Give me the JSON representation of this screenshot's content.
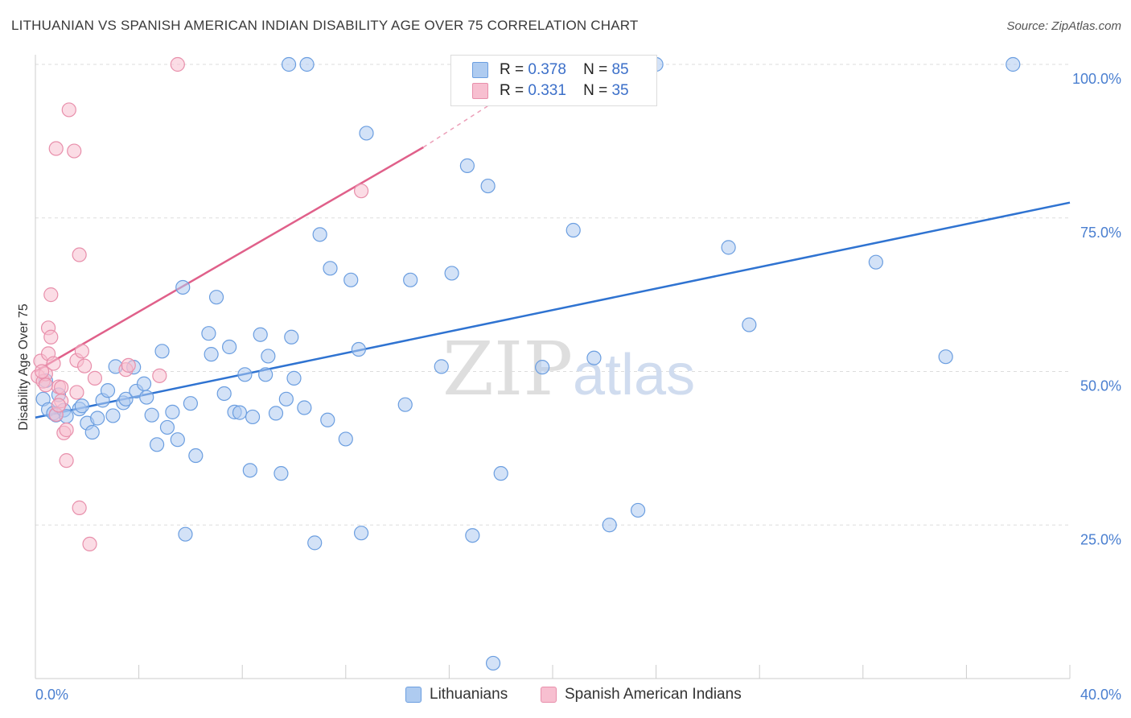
{
  "title": "LITHUANIAN VS SPANISH AMERICAN INDIAN DISABILITY AGE OVER 75 CORRELATION CHART",
  "source": "Source: ZipAtlas.com",
  "watermark": {
    "part1": "ZIP",
    "part2": "atlas"
  },
  "legend": {
    "rows": [
      {
        "r_label": "R =",
        "r_value": "0.378",
        "n_label": "N =",
        "n_value": "85"
      },
      {
        "r_label": "R =",
        "r_value": "0.331",
        "n_label": "N =",
        "n_value": "35"
      }
    ]
  },
  "bottom_legend": {
    "lithuanians": "Lithuanians",
    "spanish": "Spanish American Indians"
  },
  "colors": {
    "blue_fill": "#aecbf0",
    "blue_stroke": "#6b9ee0",
    "blue_line": "#2f73d1",
    "pink_fill": "#f7bfd0",
    "pink_stroke": "#e88fab",
    "pink_line": "#e0608a",
    "tick_text": "#4a7fd0",
    "grid": "#dddddd"
  },
  "chart_data": {
    "type": "scatter",
    "title": "LITHUANIAN VS SPANISH AMERICAN INDIAN DISABILITY AGE OVER 75 CORRELATION CHART",
    "xlabel": "",
    "ylabel": "Disability Age Over 75",
    "xlim": [
      0,
      40
    ],
    "ylim": [
      0,
      100
    ],
    "x_tick_labels": [
      "0.0%",
      "40.0%"
    ],
    "y_tick_labels": [
      "25.0%",
      "50.0%",
      "75.0%",
      "100.0%"
    ],
    "y_ticks": [
      25,
      50,
      75,
      100
    ],
    "grid": true,
    "series": [
      {
        "name": "Lithuanians",
        "color": "#aecbf0",
        "points": [
          [
            0.3,
            45.5
          ],
          [
            0.4,
            48.5
          ],
          [
            0.5,
            43.8
          ],
          [
            0.7,
            43.2
          ],
          [
            0.8,
            42.9
          ],
          [
            0.9,
            46.2
          ],
          [
            1.1,
            43.7
          ],
          [
            1.2,
            42.7
          ],
          [
            1.7,
            43.9
          ],
          [
            1.8,
            44.4
          ],
          [
            2.0,
            41.6
          ],
          [
            2.2,
            40.1
          ],
          [
            2.4,
            42.4
          ],
          [
            2.6,
            45.3
          ],
          [
            2.8,
            46.9
          ],
          [
            3.0,
            42.8
          ],
          [
            3.1,
            50.8
          ],
          [
            3.4,
            44.9
          ],
          [
            3.5,
            45.5
          ],
          [
            3.8,
            50.7
          ],
          [
            3.9,
            46.8
          ],
          [
            4.2,
            48.0
          ],
          [
            4.3,
            45.8
          ],
          [
            4.5,
            42.9
          ],
          [
            4.7,
            38.1
          ],
          [
            4.9,
            53.3
          ],
          [
            5.1,
            40.9
          ],
          [
            5.3,
            43.4
          ],
          [
            5.5,
            38.9
          ],
          [
            5.7,
            63.7
          ],
          [
            5.8,
            23.5
          ],
          [
            6.0,
            44.8
          ],
          [
            6.2,
            36.3
          ],
          [
            6.7,
            56.2
          ],
          [
            6.8,
            52.8
          ],
          [
            7.0,
            62.1
          ],
          [
            7.3,
            46.4
          ],
          [
            7.5,
            54.0
          ],
          [
            7.7,
            43.4
          ],
          [
            7.9,
            43.3
          ],
          [
            8.1,
            49.5
          ],
          [
            8.3,
            33.9
          ],
          [
            8.4,
            42.6
          ],
          [
            8.7,
            56.0
          ],
          [
            8.9,
            49.5
          ],
          [
            9.0,
            52.5
          ],
          [
            9.3,
            43.2
          ],
          [
            9.5,
            33.4
          ],
          [
            9.7,
            45.5
          ],
          [
            9.9,
            55.6
          ],
          [
            10.0,
            48.9
          ],
          [
            10.4,
            44.1
          ],
          [
            9.8,
            100.0
          ],
          [
            10.5,
            100.0
          ],
          [
            10.8,
            22.1
          ],
          [
            11.0,
            72.3
          ],
          [
            11.3,
            42.1
          ],
          [
            11.4,
            66.8
          ],
          [
            12.0,
            39.0
          ],
          [
            12.2,
            64.9
          ],
          [
            12.5,
            53.6
          ],
          [
            12.6,
            23.7
          ],
          [
            12.8,
            88.8
          ],
          [
            14.3,
            44.6
          ],
          [
            14.5,
            64.9
          ],
          [
            15.7,
            50.8
          ],
          [
            16.1,
            66.0
          ],
          [
            16.7,
            83.5
          ],
          [
            16.9,
            23.3
          ],
          [
            17.5,
            80.2
          ],
          [
            17.7,
            2.5
          ],
          [
            18.0,
            33.4
          ],
          [
            19.6,
            50.7
          ],
          [
            20.8,
            73.0
          ],
          [
            21.6,
            52.2
          ],
          [
            22.2,
            25.0
          ],
          [
            23.3,
            27.4
          ],
          [
            24.0,
            100.0
          ],
          [
            26.8,
            70.2
          ],
          [
            27.6,
            57.6
          ],
          [
            32.5,
            67.8
          ],
          [
            35.2,
            52.4
          ],
          [
            37.8,
            100.0
          ],
          [
            22.7,
            100.0
          ],
          [
            21.5,
            100.0
          ]
        ]
      },
      {
        "name": "Spanish American Indians",
        "color": "#f7bfd0",
        "points": [
          [
            0.1,
            49.2
          ],
          [
            0.2,
            51.7
          ],
          [
            0.3,
            48.4
          ],
          [
            0.4,
            49.6
          ],
          [
            0.5,
            52.9
          ],
          [
            0.5,
            57.1
          ],
          [
            0.6,
            62.5
          ],
          [
            0.6,
            55.6
          ],
          [
            0.7,
            51.3
          ],
          [
            0.8,
            86.3
          ],
          [
            0.8,
            43.0
          ],
          [
            0.9,
            47.5
          ],
          [
            1.0,
            47.4
          ],
          [
            1.0,
            45.2
          ],
          [
            1.1,
            40.0
          ],
          [
            1.2,
            40.5
          ],
          [
            1.2,
            35.5
          ],
          [
            1.3,
            92.6
          ],
          [
            1.5,
            85.9
          ],
          [
            1.6,
            46.6
          ],
          [
            1.6,
            51.8
          ],
          [
            1.7,
            69.0
          ],
          [
            1.7,
            27.8
          ],
          [
            1.8,
            53.3
          ],
          [
            1.9,
            50.9
          ],
          [
            2.1,
            21.9
          ],
          [
            2.3,
            48.9
          ],
          [
            3.5,
            50.3
          ],
          [
            3.6,
            51.0
          ],
          [
            4.8,
            49.3
          ],
          [
            5.5,
            100.0
          ],
          [
            12.6,
            79.4
          ],
          [
            0.25,
            50.0
          ],
          [
            0.9,
            44.5
          ],
          [
            0.4,
            47.8
          ]
        ]
      }
    ],
    "trend_lines": [
      {
        "series": "Lithuanians",
        "x": [
          0,
          40
        ],
        "y": [
          42.5,
          77.5
        ]
      },
      {
        "series": "Spanish American Indians",
        "x": [
          0,
          15
        ],
        "y": [
          50.0,
          86.5
        ],
        "dashed_extension_to": [
          20,
          100
        ]
      }
    ]
  }
}
